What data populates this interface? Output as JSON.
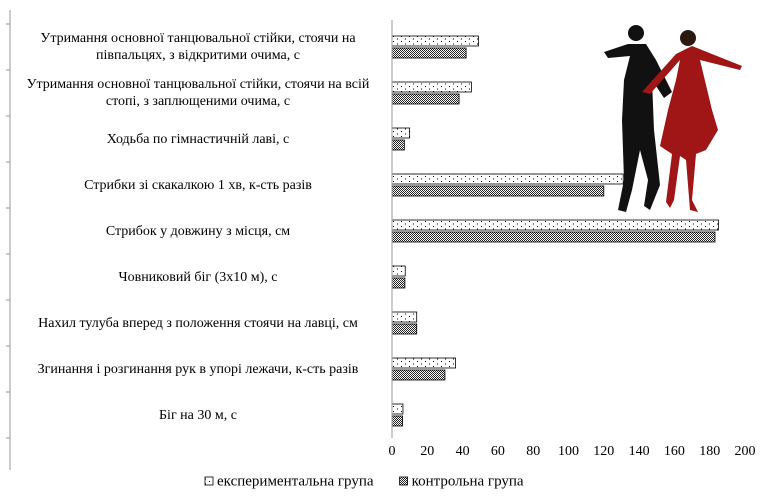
{
  "chart_data": {
    "type": "hbar",
    "categories": [
      "Утримання основної танцювальної стійки, стоячи на півпальцях, з відкритими очима, с",
      "Утримання основної танцювальної стійки, стоячи на всій стопі, з заплющеними очима, с",
      "Ходьба по гімнастичній лаві, с",
      "Стрибки зі скакалкою 1 хв, к-сть разів",
      "Стрибок у довжину з місця, см",
      "Човниковий біг (3х10 м), с",
      "Нахил тулуба вперед з положення стоячи на лавці, см",
      "Згинання і розгинання рук в упорі лежачи, к-сть разів",
      "Біг на 30 м, с"
    ],
    "series": [
      {
        "name": "експериментальна група",
        "color": "#000000",
        "pattern": "dots",
        "values": [
          49,
          45,
          10,
          131,
          185,
          7.5,
          14,
          36,
          6.2
        ]
      },
      {
        "name": "контрольна група",
        "color": "#000000",
        "pattern": "checker",
        "values": [
          42,
          38,
          7,
          120,
          183,
          7.3,
          14,
          30,
          6
        ]
      }
    ],
    "xlim": [
      0,
      200
    ],
    "xticks": [
      0,
      20,
      40,
      60,
      80,
      100,
      120,
      140,
      160,
      180,
      200
    ],
    "legend": "bottom"
  }
}
